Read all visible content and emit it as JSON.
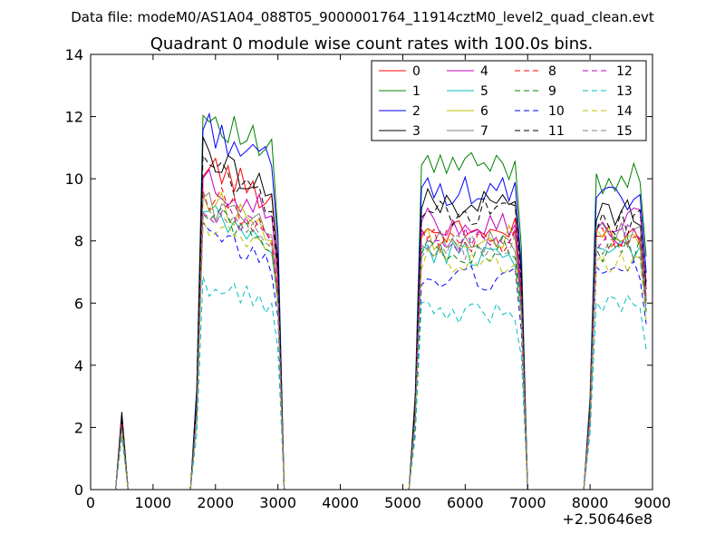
{
  "chart_data": {
    "type": "line",
    "suptitle": "Data file: modeM0/AS1A04_088T05_9000001764_11914cztM0_level2_quad_clean.evt",
    "title": "Quadrant 0 module wise count rates with 100.0s bins.",
    "xlabel": "",
    "ylabel": "",
    "x_offset_label": "+2.50646e8",
    "xlim": [
      0,
      9000
    ],
    "ylim": [
      0,
      14
    ],
    "xticks": [
      0,
      1000,
      2000,
      3000,
      4000,
      5000,
      6000,
      7000,
      8000,
      9000
    ],
    "yticks": [
      0,
      2,
      4,
      6,
      8,
      10,
      12,
      14
    ],
    "legend_position": "top-right",
    "legend_columns": 4,
    "segments": [
      {
        "x0": 500,
        "x1": 500,
        "note": "single bin"
      },
      {
        "x0": 1700,
        "x1": 3000
      },
      {
        "x0": 5200,
        "x1": 6900
      },
      {
        "x0": 8000,
        "x1": 8900
      }
    ],
    "series": [
      {
        "name": "0",
        "color": "#ff0000",
        "dash": "solid",
        "levels": [
          2.2,
          9.5,
          8.3,
          8.2
        ]
      },
      {
        "name": "1",
        "color": "#008000",
        "dash": "solid",
        "levels": [
          2.4,
          11.0,
          10.4,
          10.0
        ]
      },
      {
        "name": "2",
        "color": "#0000ff",
        "dash": "solid",
        "levels": [
          2.3,
          10.6,
          9.6,
          9.3
        ]
      },
      {
        "name": "3",
        "color": "#000000",
        "dash": "solid",
        "levels": [
          2.5,
          9.8,
          9.2,
          8.9
        ]
      },
      {
        "name": "4",
        "color": "#bf00bf",
        "dash": "solid",
        "levels": [
          2.2,
          9.0,
          8.6,
          8.6
        ]
      },
      {
        "name": "5",
        "color": "#00bfbf",
        "dash": "solid",
        "levels": [
          2.0,
          8.0,
          7.6,
          7.6
        ]
      },
      {
        "name": "6",
        "color": "#bfbf00",
        "dash": "solid",
        "levels": [
          2.0,
          8.5,
          8.1,
          8.0
        ]
      },
      {
        "name": "7",
        "color": "#808080",
        "dash": "solid",
        "levels": [
          2.1,
          8.4,
          8.0,
          8.2
        ]
      },
      {
        "name": "8",
        "color": "#ff0000",
        "dash": "dashed",
        "levels": [
          2.1,
          8.6,
          8.0,
          8.1
        ]
      },
      {
        "name": "9",
        "color": "#008000",
        "dash": "dashed",
        "levels": [
          2.0,
          8.1,
          7.7,
          7.7
        ]
      },
      {
        "name": "10",
        "color": "#0000ff",
        "dash": "dashed",
        "levels": [
          1.9,
          7.4,
          6.8,
          7.1
        ]
      },
      {
        "name": "11",
        "color": "#000000",
        "dash": "dashed",
        "levels": [
          2.2,
          9.4,
          8.9,
          8.6
        ]
      },
      {
        "name": "12",
        "color": "#bf00bf",
        "dash": "dashed",
        "levels": [
          2.0,
          8.3,
          8.0,
          8.1
        ]
      },
      {
        "name": "13",
        "color": "#00bfbf",
        "dash": "dashed",
        "levels": [
          1.7,
          6.0,
          5.7,
          6.0
        ]
      },
      {
        "name": "14",
        "color": "#bfbf00",
        "dash": "dashed",
        "levels": [
          1.9,
          7.7,
          7.3,
          7.3
        ]
      },
      {
        "name": "15",
        "color": "#808080",
        "dash": "dashed",
        "levels": [
          2.0,
          8.2,
          7.8,
          7.8
        ]
      }
    ]
  }
}
